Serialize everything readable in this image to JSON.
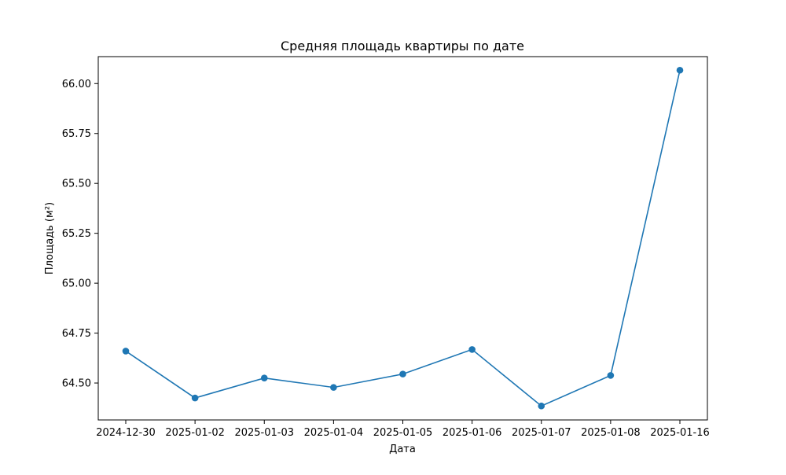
{
  "chart_data": {
    "type": "line",
    "title": "Средняя площадь квартиры по дате",
    "xlabel": "Дата",
    "ylabel": "Площадь (м²)",
    "categories": [
      "2024-12-30",
      "2025-01-02",
      "2025-01-03",
      "2025-01-04",
      "2025-01-05",
      "2025-01-06",
      "2025-01-07",
      "2025-01-08",
      "2025-01-16"
    ],
    "series": [
      {
        "values": [
          64.66,
          64.425,
          64.525,
          64.478,
          64.545,
          64.668,
          64.385,
          64.538,
          66.067
        ]
      }
    ],
    "ylim": [
      64.315,
      66.135
    ],
    "yticks": [
      64.5,
      64.75,
      65.0,
      65.25,
      65.5,
      65.75,
      66.0
    ],
    "ytick_labels": [
      "64.50",
      "64.75",
      "65.00",
      "65.25",
      "65.50",
      "65.75",
      "66.00"
    ],
    "grid": false,
    "legend": "none",
    "colors": {
      "series": "#1f77b4",
      "axes": "#000000",
      "background": "#ffffff"
    }
  }
}
